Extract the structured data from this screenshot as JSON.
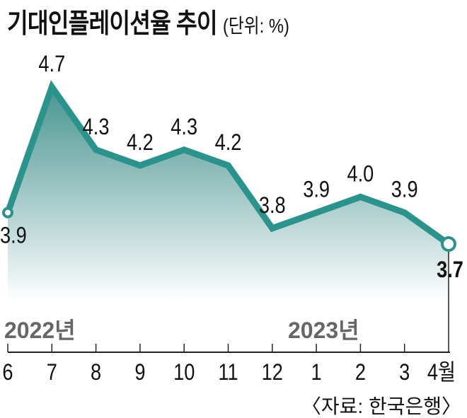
{
  "chart_data": {
    "type": "area",
    "title": "기대인플레이션율 추이",
    "unit": "(단위: %)",
    "categories": [
      "6",
      "7",
      "8",
      "9",
      "10",
      "11",
      "12",
      "1",
      "2",
      "3",
      "4월"
    ],
    "year_labels": [
      {
        "label": "2022년",
        "at": "6"
      },
      {
        "label": "2023년",
        "at": "1"
      }
    ],
    "values": [
      3.9,
      4.7,
      4.3,
      4.2,
      4.3,
      4.2,
      3.8,
      3.9,
      4.0,
      3.9,
      3.7
    ],
    "value_labels": [
      "3.9",
      "4.7",
      "4.3",
      "4.2",
      "4.3",
      "4.2",
      "3.8",
      "3.9",
      "4.0",
      "3.9",
      "3.7"
    ],
    "highlight_last": true,
    "grid": false,
    "source": "〈자료: 한국은행〉",
    "colors": {
      "line": "#2a938c",
      "fill_top": "#3f8f8a",
      "fill_bottom": "#ffffff",
      "text": "#111111",
      "year": "#666666"
    }
  }
}
